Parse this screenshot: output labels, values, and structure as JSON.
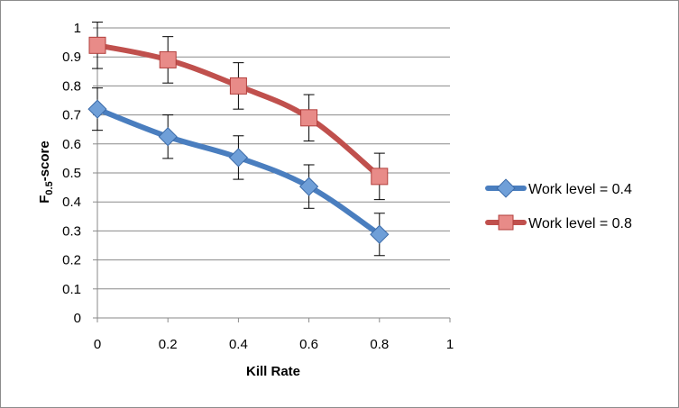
{
  "chart_data": {
    "type": "line",
    "xlabel": "Kill Rate",
    "ylabel": {
      "main": "F",
      "sub": "0.5",
      "suffix": "-score"
    },
    "xlim": [
      0,
      1
    ],
    "ylim": [
      0,
      1
    ],
    "x_ticks": [
      "0",
      "0.2",
      "0.4",
      "0.6",
      "0.8",
      "1"
    ],
    "y_ticks": [
      "0",
      "0.1",
      "0.2",
      "0.3",
      "0.4",
      "0.5",
      "0.6",
      "0.7",
      "0.8",
      "0.9",
      "1"
    ],
    "grid": "horizontal",
    "legend_position": "right",
    "x": [
      0,
      0.2,
      0.4,
      0.6,
      0.8
    ],
    "series": [
      {
        "name": "Work level = 0.4",
        "values": [
          0.72,
          0.625,
          0.553,
          0.453,
          0.288
        ],
        "error": [
          0.073,
          0.075,
          0.075,
          0.075,
          0.073
        ],
        "color": "#4a7ebf",
        "marker": "diamond"
      },
      {
        "name": "Work level = 0.8",
        "values": [
          0.94,
          0.89,
          0.8,
          0.69,
          0.488
        ],
        "error": [
          0.08,
          0.08,
          0.08,
          0.08,
          0.08
        ],
        "color": "#c0504d",
        "marker": "square"
      }
    ]
  }
}
